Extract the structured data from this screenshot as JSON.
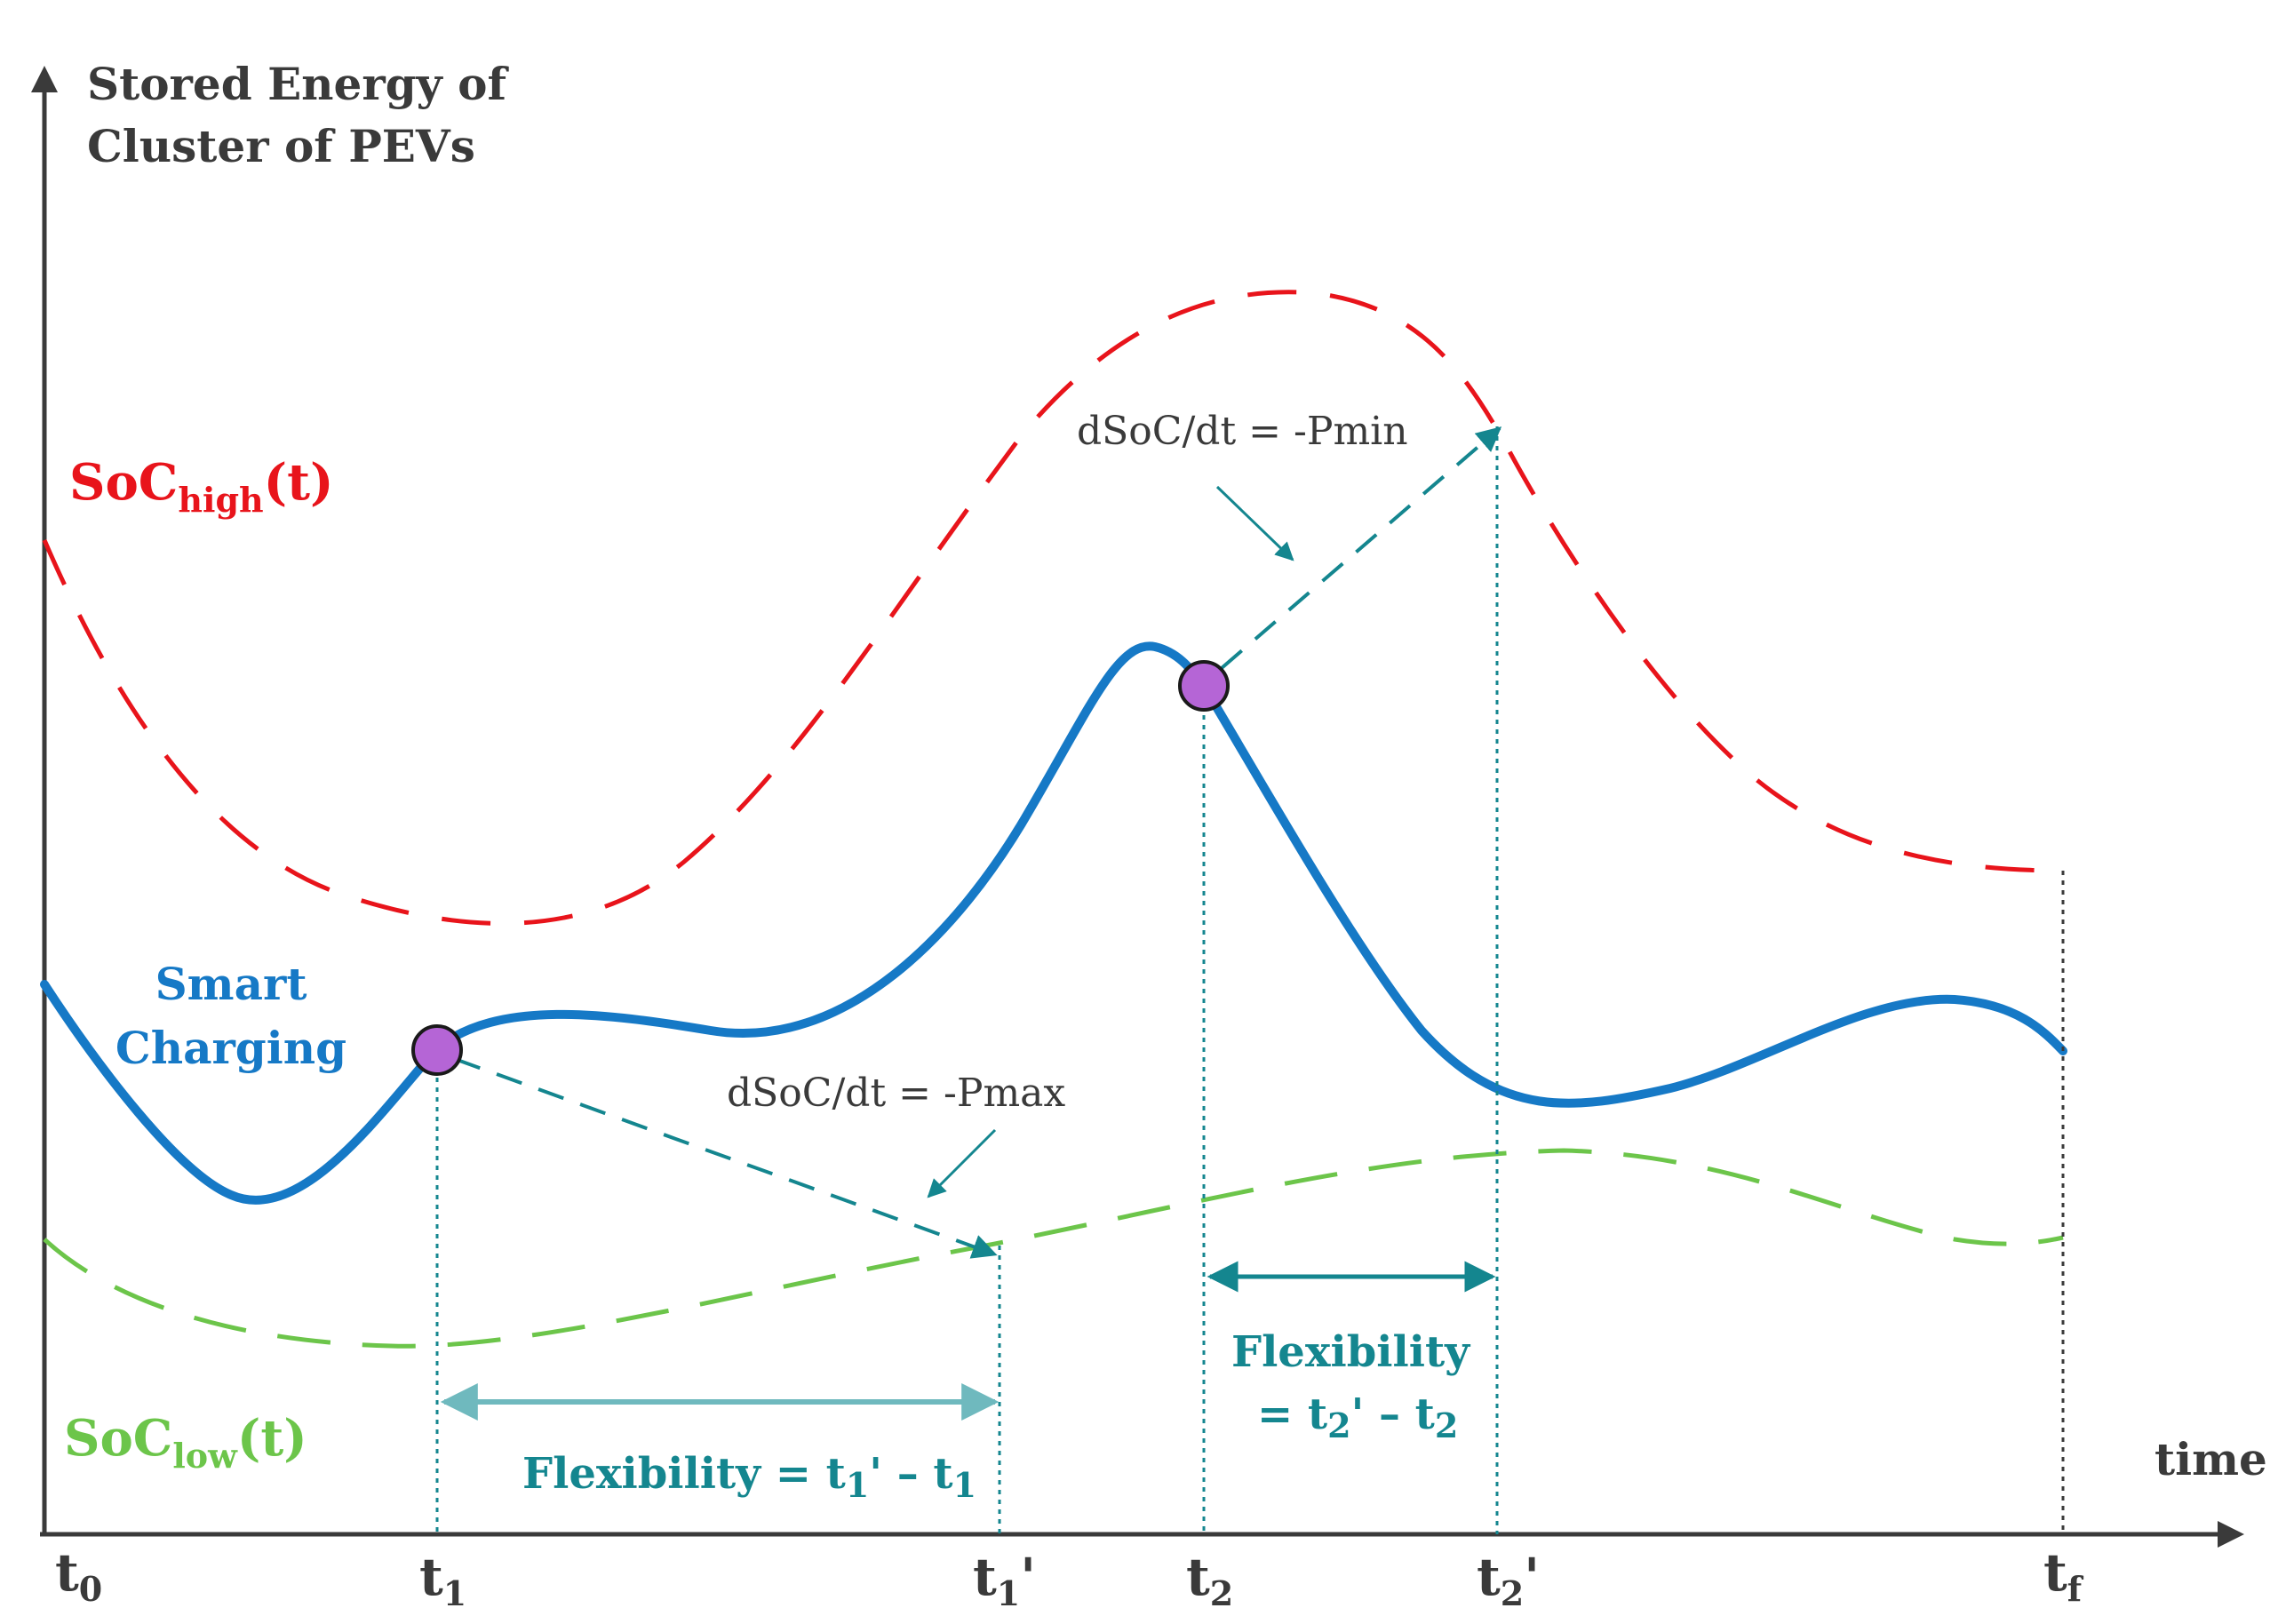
{
  "colors": {
    "soc_high": "#e8141b",
    "soc_low": "#6cc54a",
    "smart_charging": "#1679c6",
    "annotation": "#14868f",
    "flex_arrow": "#6fb9be",
    "point_fill": "#b565d6",
    "axis": "#3a3a3a"
  },
  "axis": {
    "y_label_line1": "Stored Energy of",
    "y_label_line2": "Cluster of PEVs",
    "x_label": "time"
  },
  "curves": {
    "soc_high": {
      "main": "SoC",
      "sub": "high",
      "suffix": "(t)"
    },
    "soc_low": {
      "main": "SoC",
      "sub": "low",
      "suffix": "(t)"
    },
    "smart_charging": {
      "line1": "Smart",
      "line2": "Charging"
    }
  },
  "annotations": {
    "rate_min": "dSoC/dt = -Pmin",
    "rate_max": "dSoC/dt = -Pmax",
    "flex1": {
      "a": "Flexibility = t",
      "b": "1",
      "c": "' – t",
      "d": "1"
    },
    "flex2": {
      "line1": "Flexibility",
      "a": "= t",
      "b": "2",
      "c": "' – t",
      "d": "2"
    }
  },
  "ticks": {
    "t0": {
      "base": "t",
      "sub": "0",
      "prime": ""
    },
    "t1": {
      "base": "t",
      "sub": "1",
      "prime": ""
    },
    "t1p": {
      "base": "t",
      "sub": "1",
      "prime": "'"
    },
    "t2": {
      "base": "t",
      "sub": "2",
      "prime": ""
    },
    "t2p": {
      "base": "t",
      "sub": "2",
      "prime": "'"
    },
    "tf": {
      "base": "t",
      "sub": "f",
      "prime": ""
    }
  }
}
